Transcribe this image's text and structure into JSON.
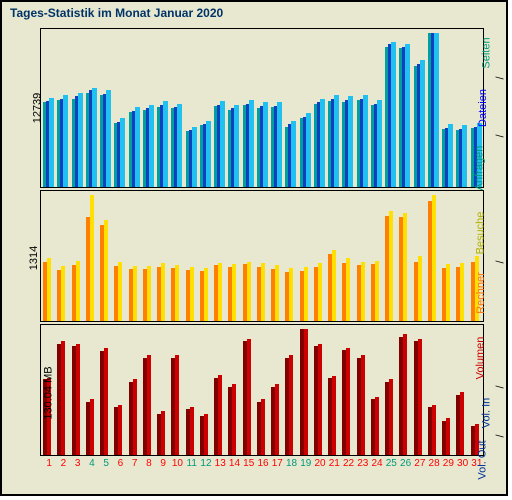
{
  "title": "Tages-Statistik im Monat Januar 2020",
  "background_color": "#e8e8d0",
  "border_color": "#000000",
  "title_color": "#003366",
  "title_fontsize": 12,
  "days": [
    1,
    2,
    3,
    4,
    5,
    6,
    7,
    8,
    9,
    10,
    11,
    12,
    13,
    14,
    15,
    16,
    17,
    18,
    19,
    20,
    21,
    22,
    23,
    24,
    25,
    26,
    27,
    28,
    29,
    30,
    31
  ],
  "weekend_days": [
    4,
    5,
    11,
    12,
    18,
    19,
    25,
    26
  ],
  "weekend_label_color": "#00997a",
  "weekday_label_color": "#ff0000",
  "panel_top": {
    "ymax_label": "12739",
    "ymax": 12739,
    "series": [
      {
        "name": "Seiten",
        "color": "#00a0a0",
        "width": 3,
        "offset": 0
      },
      {
        "name": "Dateien",
        "color": "#1040c0",
        "width": 3,
        "offset": 3
      },
      {
        "name": "Anfragen",
        "color": "#20c0f0",
        "width": 5,
        "offset": 6
      }
    ],
    "data": {
      "Seiten": [
        7000,
        7200,
        7300,
        7800,
        7600,
        5300,
        6200,
        6400,
        6600,
        6500,
        4600,
        5100,
        6700,
        6400,
        6800,
        6500,
        6600,
        5000,
        5700,
        6900,
        7100,
        7000,
        7200,
        6800,
        11600,
        11500,
        10000,
        12700,
        4800,
        4700,
        4900
      ],
      "Dateien": [
        7100,
        7300,
        7500,
        8000,
        7700,
        5400,
        6300,
        6500,
        6800,
        6600,
        4700,
        5200,
        6800,
        6500,
        6900,
        6700,
        6700,
        5200,
        5800,
        7000,
        7300,
        7200,
        7300,
        6900,
        11800,
        11600,
        10200,
        12739,
        4900,
        4800,
        5000
      ],
      "Anfragen": [
        7400,
        7600,
        7800,
        8200,
        8000,
        5700,
        6600,
        6800,
        7100,
        6900,
        5000,
        5500,
        7100,
        6800,
        7200,
        7000,
        7000,
        5500,
        6100,
        7300,
        7600,
        7500,
        7600,
        7200,
        12000,
        11800,
        10500,
        12739,
        5200,
        5100,
        5300
      ]
    },
    "rlabels": [
      {
        "text": "Seiten",
        "color": "#00997a"
      },
      {
        "text": "Dateien",
        "color": "#0000ff"
      },
      {
        "text": "Anfragen",
        "color": "#00997a"
      }
    ]
  },
  "panel_mid": {
    "ymax_label": "1314",
    "ymax": 1314,
    "series": [
      {
        "name": "Rechner",
        "color": "#ff8000",
        "width": 4,
        "offset": 0
      },
      {
        "name": "Besuche",
        "color": "#ffe000",
        "width": 4,
        "offset": 4
      }
    ],
    "data": {
      "Rechner": [
        620,
        530,
        580,
        1080,
        1000,
        570,
        540,
        540,
        560,
        550,
        530,
        520,
        580,
        560,
        590,
        560,
        540,
        510,
        520,
        560,
        700,
        610,
        580,
        590,
        1100,
        1080,
        620,
        1250,
        550,
        560,
        620
      ],
      "Besuche": [
        660,
        570,
        630,
        1314,
        1050,
        620,
        570,
        570,
        600,
        580,
        560,
        550,
        610,
        590,
        620,
        600,
        580,
        550,
        560,
        600,
        740,
        660,
        620,
        630,
        1150,
        1130,
        680,
        1310,
        590,
        600,
        680
      ]
    },
    "rlabels": [
      {
        "text": "Besuche",
        "color": "#cccc00"
      },
      {
        "text": "Rechner",
        "color": "#ff8000"
      }
    ]
  },
  "panel_bot": {
    "ymax_label": "130.04 MB",
    "ymax": 130.04,
    "series": [
      {
        "name": "Vol.In",
        "color": "#800000",
        "width": 4,
        "offset": 0
      },
      {
        "name": "Vol.Out",
        "color": "#cc0000",
        "width": 4,
        "offset": 4
      }
    ],
    "data": {
      "Vol.In": [
        78,
        115,
        112,
        55,
        107,
        50,
        75,
        100,
        42,
        100,
        48,
        40,
        80,
        70,
        118,
        55,
        70,
        100,
        130,
        112,
        80,
        108,
        100,
        58,
        75,
        122,
        118,
        50,
        35,
        62,
        30
      ],
      "Vol.Out": [
        80,
        118,
        115,
        58,
        110,
        52,
        78,
        103,
        45,
        103,
        50,
        42,
        83,
        73,
        120,
        58,
        73,
        103,
        130,
        115,
        82,
        110,
        103,
        60,
        78,
        125,
        120,
        52,
        38,
        65,
        32
      ]
    },
    "rlabels": [
      {
        "text": "Volumen",
        "color": "#cc0000"
      },
      {
        "text": "Vol. In",
        "color": "#003399"
      },
      {
        "text": "Vol. Out",
        "color": "#003399"
      }
    ]
  }
}
